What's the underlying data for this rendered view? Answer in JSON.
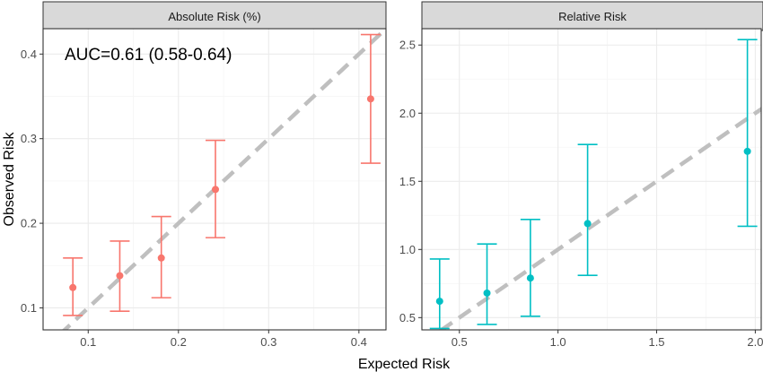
{
  "figure": {
    "xlabel": "Expected Risk",
    "ylabel": "Observed Risk",
    "colors": {
      "background": "#ffffff",
      "panel_border": "#333333",
      "grid_major": "#ebebeb",
      "grid_minor": "#f5f5f5",
      "strip_fill": "#d9d9d9",
      "reference_line": "#bfbfbf"
    }
  },
  "chart_data": [
    {
      "type": "scatter",
      "title": "Absolute Risk (%)",
      "annotation": "AUC=0.61 (0.58-0.64)",
      "color": "#F8766D",
      "xlim": [
        0.05,
        0.43
      ],
      "ylim": [
        0.074,
        0.43
      ],
      "xticks": [
        0.1,
        0.2,
        0.3,
        0.4
      ],
      "xtick_labels": [
        "0.1",
        "0.2",
        "0.3",
        "0.4"
      ],
      "yticks": [
        0.1,
        0.2,
        0.3,
        0.4
      ],
      "ytick_labels": [
        "0.1",
        "0.2",
        "0.3",
        "0.4"
      ],
      "grid": true,
      "reference_line": "y = x (dashed)",
      "points": [
        {
          "x": 0.083,
          "y": 0.124,
          "lower": 0.091,
          "upper": 0.159
        },
        {
          "x": 0.135,
          "y": 0.138,
          "lower": 0.096,
          "upper": 0.179
        },
        {
          "x": 0.181,
          "y": 0.159,
          "lower": 0.112,
          "upper": 0.208
        },
        {
          "x": 0.241,
          "y": 0.24,
          "lower": 0.183,
          "upper": 0.298
        },
        {
          "x": 0.413,
          "y": 0.347,
          "lower": 0.271,
          "upper": 0.423
        }
      ]
    },
    {
      "type": "scatter",
      "title": "Relative Risk",
      "color": "#00BFC4",
      "xlim": [
        0.31,
        2.03
      ],
      "ylim": [
        0.41,
        2.62
      ],
      "xticks": [
        0.5,
        1.0,
        1.5,
        2.0
      ],
      "xtick_labels": [
        "0.5",
        "1.0",
        "1.5",
        "2.0"
      ],
      "yticks": [
        0.5,
        1.0,
        1.5,
        2.0,
        2.5
      ],
      "ytick_labels": [
        "0.5",
        "1.0",
        "1.5",
        "2.0",
        "2.5"
      ],
      "grid": true,
      "reference_line": "y = x (dashed)",
      "points": [
        {
          "x": 0.4,
          "y": 0.62,
          "lower": 0.42,
          "upper": 0.93
        },
        {
          "x": 0.64,
          "y": 0.68,
          "lower": 0.45,
          "upper": 1.04
        },
        {
          "x": 0.86,
          "y": 0.79,
          "lower": 0.51,
          "upper": 1.22
        },
        {
          "x": 1.15,
          "y": 1.19,
          "lower": 0.81,
          "upper": 1.77
        },
        {
          "x": 1.96,
          "y": 1.72,
          "lower": 1.17,
          "upper": 2.54
        }
      ]
    }
  ]
}
